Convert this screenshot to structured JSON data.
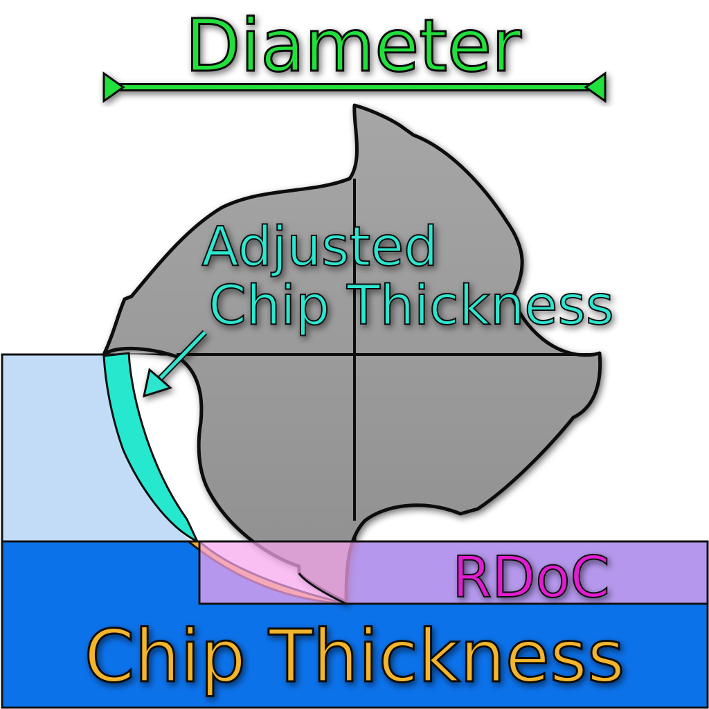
{
  "diagram": {
    "title": "Diameter",
    "adjusted_label_line1": "Adjusted",
    "adjusted_label_line2": "Chip Thickness",
    "rdoc_label": "RDoC",
    "chip_label": "Chip Thickness"
  },
  "colors": {
    "diameter": "#22e03a",
    "adjusted": "#2ee6cf",
    "rdoc": "#e21bd0",
    "chip": "#f3b52c",
    "tool": "#9a9a9a",
    "workpiece_light": "#c2dbf7",
    "workpiece_dark": "#0c72ea",
    "rdoc_band": "#f7bff0",
    "chip_fill": "#f2ad2a",
    "adjusted_fill": "#25e8cf"
  }
}
